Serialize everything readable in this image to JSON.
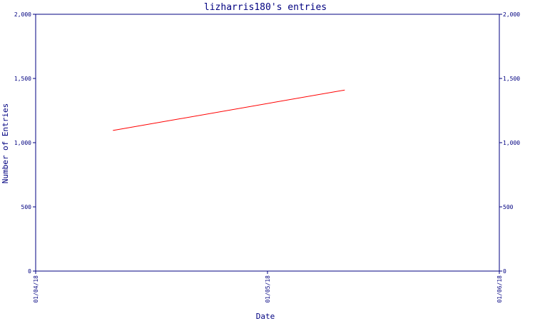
{
  "chart_data": {
    "type": "line",
    "title": "lizharris180's entries",
    "xlabel": "Date",
    "ylabel": "Number of Entries",
    "x_ticks": [
      "01/04/18",
      "01/05/18",
      "01/06/18"
    ],
    "y_ticks": [
      "0",
      "500",
      "1,000",
      "1,500",
      "2,000"
    ],
    "ylim": [
      0,
      2000
    ],
    "grid": false,
    "mirror_y_axis": true,
    "series": [
      {
        "x": [
          "01/04/18 08:00",
          "01/05/18 08:00"
        ],
        "values": [
          1095,
          1410
        ]
      }
    ],
    "colors": {
      "axis": "#000080",
      "line": "#ff0000",
      "background": "#ffffff"
    }
  }
}
